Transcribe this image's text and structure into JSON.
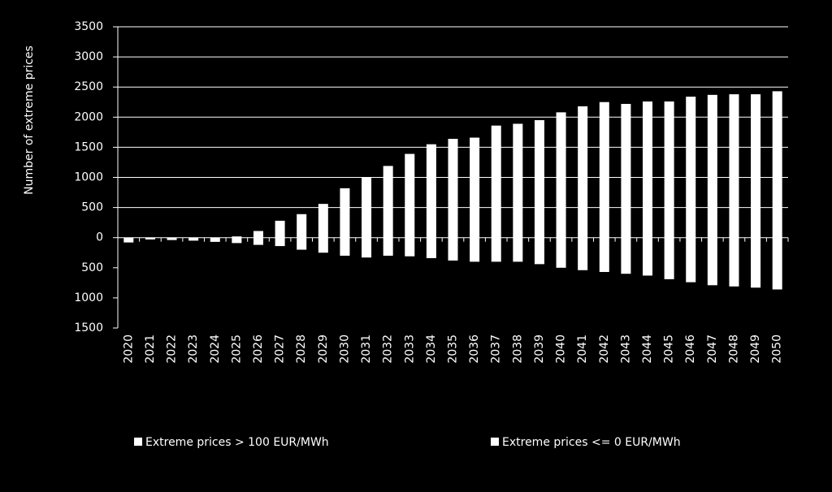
{
  "chart_data": {
    "type": "bar",
    "y_label": "Number of extreme prices",
    "categories": [
      "2020",
      "2021",
      "2022",
      "2023",
      "2024",
      "2025",
      "2026",
      "2027",
      "2028",
      "2029",
      "2030",
      "2031",
      "2032",
      "2033",
      "2034",
      "2035",
      "2036",
      "2037",
      "2038",
      "2039",
      "2040",
      "2041",
      "2042",
      "2043",
      "2044",
      "2045",
      "2046",
      "2047",
      "2048",
      "2049",
      "2050"
    ],
    "series": [
      {
        "name": "Extreme prices > 100 EUR/MWh",
        "color": "#ffffff",
        "values": [
          0,
          0,
          0,
          0,
          0,
          20,
          110,
          280,
          390,
          560,
          820,
          1000,
          1190,
          1390,
          1550,
          1640,
          1660,
          1860,
          1890,
          1950,
          2080,
          2180,
          2250,
          2220,
          2260,
          2260,
          2340,
          2370,
          2380,
          2380,
          2430
        ]
      },
      {
        "name": "Extreme prices <= 0 EUR/MWh",
        "color": "#ffffff",
        "values": [
          -80,
          -30,
          -40,
          -50,
          -70,
          -90,
          -120,
          -140,
          -200,
          -250,
          -300,
          -330,
          -300,
          -310,
          -340,
          -380,
          -400,
          -400,
          -400,
          -440,
          -500,
          -540,
          -570,
          -600,
          -630,
          -690,
          -740,
          -790,
          -810,
          -830,
          -860
        ]
      }
    ],
    "ylim": [
      -1500,
      3500
    ],
    "yticks": [
      {
        "value": -1500,
        "label": "1500"
      },
      {
        "value": -1000,
        "label": "1000"
      },
      {
        "value": -500,
        "label": "500"
      },
      0,
      500,
      1000,
      1500,
      2000,
      2500,
      3000,
      3500
    ],
    "grid": true,
    "legend": "bottom"
  }
}
